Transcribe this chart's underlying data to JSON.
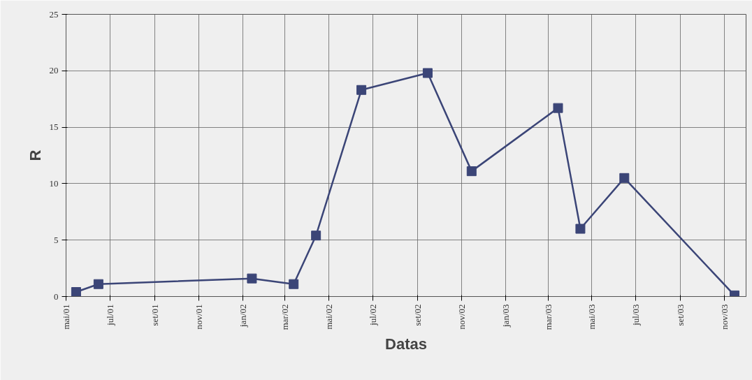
{
  "chart_data": {
    "type": "line",
    "xlabel": "Datas",
    "ylabel": "R",
    "x": [
      "2001-05-15",
      "2001-06-15",
      "2002-01-14",
      "2002-03-13",
      "2002-04-13",
      "2002-06-15",
      "2002-09-15",
      "2002-11-15",
      "2003-03-15",
      "2003-04-15",
      "2003-06-15",
      "2003-11-15"
    ],
    "series": [
      {
        "color": "#3b4577",
        "values": [
          0.4,
          1.1,
          1.6,
          1.1,
          5.4,
          18.3,
          19.8,
          11.1,
          16.7,
          6.0,
          10.5,
          0.1
        ]
      }
    ],
    "marker": "square",
    "line_style": "solid",
    "grid": true,
    "xlim": [
      "2001-05-01",
      "2003-12-01"
    ],
    "xticks": [
      {
        "value": "2001-05-01",
        "label": "mai/01"
      },
      {
        "value": "2001-07-01",
        "label": "jul/01"
      },
      {
        "value": "2001-09-01",
        "label": "set/01"
      },
      {
        "value": "2001-11-01",
        "label": "nov/01"
      },
      {
        "value": "2002-01-01",
        "label": "jan/02"
      },
      {
        "value": "2002-03-01",
        "label": "mar/02"
      },
      {
        "value": "2002-05-01",
        "label": "mai/02"
      },
      {
        "value": "2002-07-01",
        "label": "jul/02"
      },
      {
        "value": "2002-09-01",
        "label": "set/02"
      },
      {
        "value": "2002-11-01",
        "label": "nov/02"
      },
      {
        "value": "2003-01-01",
        "label": "jan/03"
      },
      {
        "value": "2003-03-01",
        "label": "mar/03"
      },
      {
        "value": "2003-05-01",
        "label": "mai/03"
      },
      {
        "value": "2003-07-01",
        "label": "jul/03"
      },
      {
        "value": "2003-09-01",
        "label": "set/03"
      },
      {
        "value": "2003-11-01",
        "label": "nov/03"
      }
    ],
    "ylim": [
      0,
      25
    ],
    "yticks": [
      0,
      5,
      10,
      15,
      20,
      25
    ]
  }
}
